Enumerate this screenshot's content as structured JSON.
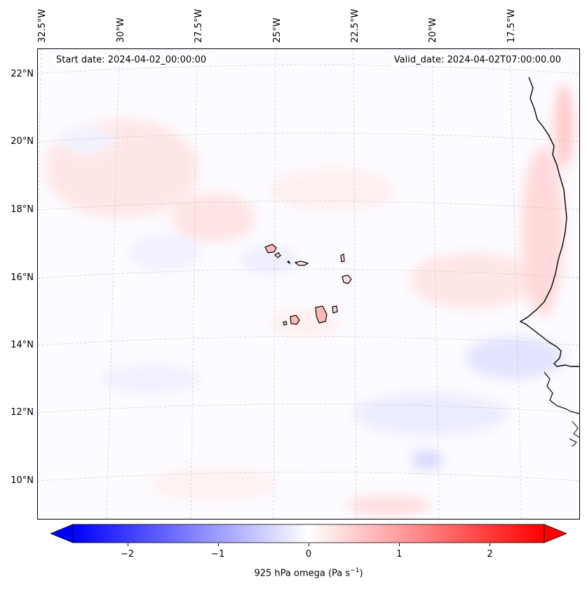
{
  "map": {
    "start_date": "Start date: 2024-04-02_00:00:00",
    "valid_date": "Valid_date: 2024-04-02T07:00:00.00",
    "longitude_labels": [
      "32.5°W",
      "30°W",
      "27.5°W",
      "25°W",
      "22.5°W",
      "20°W",
      "17.5°W"
    ],
    "latitude_labels": [
      "22°N",
      "20°N",
      "18°N",
      "16°N",
      "14°N",
      "12°N",
      "10°N"
    ],
    "field": "925 hPa omega",
    "coastline_color": "#000000",
    "gridline_color": "#bbbbbb"
  },
  "colorbar": {
    "label_text": "925 hPa omega (Pa s",
    "label_unit_exponent": "−1",
    "label_close": ")",
    "ticks": [
      "−2",
      "−1",
      "0",
      "1",
      "2"
    ],
    "tick_values": [
      -2,
      -1,
      0,
      1,
      2
    ],
    "range": [
      -2.6,
      2.6
    ],
    "extend": "both",
    "colormap": "bwr",
    "low_color": "#0000ff",
    "mid_color": "#ffffff",
    "high_color": "#ff0000"
  }
}
